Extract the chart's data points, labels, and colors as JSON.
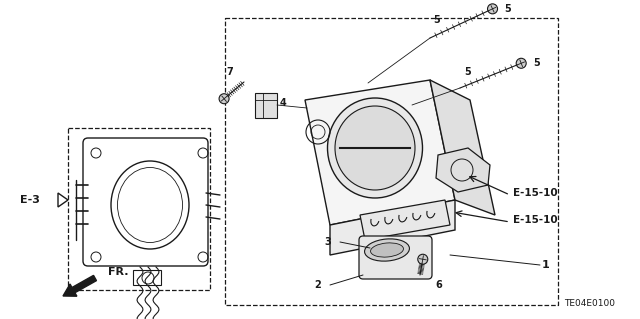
{
  "bg_color": "#ffffff",
  "line_color": "#1a1a1a",
  "diagram_code": "TE04E0100",
  "labels": {
    "part1": "1",
    "part2": "2",
    "part3": "3",
    "part4": "4",
    "part5a": "5",
    "part5b": "5",
    "part5c": "5",
    "part5d": "5",
    "part6": "6",
    "part7": "7",
    "e3": "E-3",
    "e1510a": "E-15-10",
    "e1510b": "E-15-10"
  }
}
